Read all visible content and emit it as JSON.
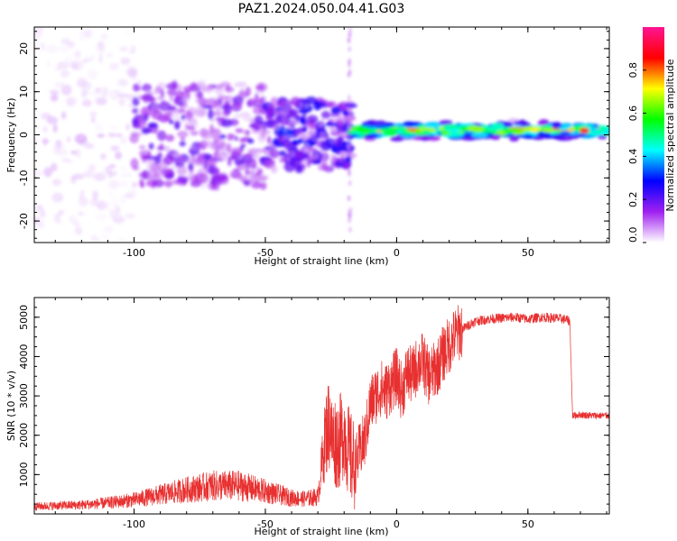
{
  "figure": {
    "title": "PAZ1.2024.050.04.41.G03"
  },
  "chart_data": [
    {
      "type": "heatmap",
      "xlabel": "Height of straight line (km)",
      "ylabel": "Frequency (Hz)",
      "xlim": [
        -138,
        81
      ],
      "ylim": [
        -25,
        25
      ],
      "x_ticks": [
        -100,
        -50,
        0,
        50
      ],
      "y_ticks": [
        -20,
        -10,
        0,
        10,
        20
      ],
      "colorbar": {
        "label": "Normalized spectral amplitude",
        "range": [
          0,
          1
        ],
        "ticks": [
          0.0,
          0.2,
          0.4,
          0.6,
          0.8
        ],
        "colormap": "white-purple-blue-cyan-green-yellow-red-magenta",
        "colors": [
          "#ffffff",
          "#a020f0",
          "#0000ff",
          "#00ffff",
          "#00ff00",
          "#ffff00",
          "#ff0000",
          "#ff1493"
        ]
      },
      "regions": [
        {
          "x_range": [
            -138,
            -100
          ],
          "freq_spread_hz": 25,
          "amplitude": 0.05
        },
        {
          "x_range": [
            -100,
            -50
          ],
          "freq_spread_hz": 12,
          "amplitude": 0.15
        },
        {
          "x_range": [
            -50,
            -17
          ],
          "freq_spread_hz": 8,
          "amplitude": 0.2
        },
        {
          "x_range": [
            -17,
            81
          ],
          "center_hz": 1,
          "freq_spread_hz": 2.5,
          "amplitude": 0.8
        }
      ]
    },
    {
      "type": "line",
      "xlabel": "Height of straight line (km)",
      "ylabel": "SNR (10 * v/v)",
      "xlim": [
        -138,
        81
      ],
      "ylim": [
        0,
        5500
      ],
      "x_ticks": [
        -100,
        -50,
        0,
        50
      ],
      "y_ticks": [
        1000,
        2000,
        3000,
        4000,
        5000
      ],
      "color": "#e83030",
      "series": [
        {
          "x": [
            -138,
            -120,
            -110,
            -100,
            -90,
            -80,
            -70,
            -60,
            -50,
            -40,
            -35,
            -30,
            -27,
            -25,
            -22,
            -20,
            -18,
            -16,
            -14,
            -12,
            -10,
            -8,
            -6,
            -4,
            -2,
            0,
            2,
            4,
            6,
            8,
            10,
            12,
            14,
            16,
            18,
            20,
            22,
            25,
            30,
            35,
            40,
            45,
            50,
            55,
            60,
            64,
            66,
            67,
            70,
            75,
            81
          ],
          "y": [
            150,
            180,
            220,
            280,
            380,
            480,
            560,
            560,
            450,
            320,
            300,
            340,
            1600,
            1900,
            1800,
            2100,
            1500,
            1200,
            1600,
            1900,
            2800,
            3000,
            3200,
            3100,
            3300,
            3500,
            3100,
            3600,
            3500,
            3800,
            3900,
            3500,
            3600,
            3800,
            4100,
            4300,
            4500,
            4700,
            4900,
            4950,
            4980,
            5000,
            4950,
            5000,
            4980,
            4950,
            4900,
            2500,
            2520,
            2500,
            2500
          ]
        }
      ]
    }
  ]
}
